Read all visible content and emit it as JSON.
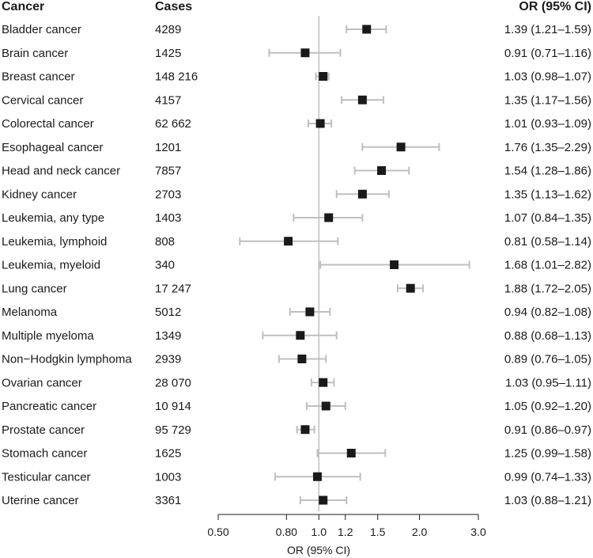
{
  "chart_data": {
    "type": "forest",
    "headers": {
      "cancer": "Cancer",
      "cases": "Cases",
      "or": "OR (95% CI)"
    },
    "xlabel": "OR (95% CI)",
    "xscale": "log",
    "xlim": [
      0.5,
      3.0
    ],
    "reference_value": 1.0,
    "ticks": [
      {
        "value": 0.5,
        "label": "0.50"
      },
      {
        "value": 0.8,
        "label": "0.80"
      },
      {
        "value": 1.0,
        "label": "1.0"
      },
      {
        "value": 1.2,
        "label": "1.2"
      },
      {
        "value": 1.5,
        "label": "1.5"
      },
      {
        "value": 2.0,
        "label": "2.0"
      },
      {
        "value": 3.0,
        "label": "3.0"
      }
    ],
    "rows": [
      {
        "cancer": "Bladder cancer",
        "cases": "4289",
        "or": 1.39,
        "lo": 1.21,
        "hi": 1.59,
        "or_text": "1.39 (1.21–1.59)"
      },
      {
        "cancer": "Brain cancer",
        "cases": "1425",
        "or": 0.91,
        "lo": 0.71,
        "hi": 1.16,
        "or_text": "0.91 (0.71–1.16)"
      },
      {
        "cancer": "Breast cancer",
        "cases": "148 216",
        "or": 1.03,
        "lo": 0.98,
        "hi": 1.07,
        "or_text": "1.03 (0.98–1.07)"
      },
      {
        "cancer": "Cervical cancer",
        "cases": "4157",
        "or": 1.35,
        "lo": 1.17,
        "hi": 1.56,
        "or_text": "1.35 (1.17–1.56)"
      },
      {
        "cancer": "Colorectal cancer",
        "cases": "62 662",
        "or": 1.01,
        "lo": 0.93,
        "hi": 1.09,
        "or_text": "1.01 (0.93–1.09)"
      },
      {
        "cancer": "Esophageal cancer",
        "cases": "1201",
        "or": 1.76,
        "lo": 1.35,
        "hi": 2.29,
        "or_text": "1.76 (1.35–2.29)"
      },
      {
        "cancer": "Head and neck cancer",
        "cases": "7857",
        "or": 1.54,
        "lo": 1.28,
        "hi": 1.86,
        "or_text": "1.54 (1.28–1.86)"
      },
      {
        "cancer": "Kidney cancer",
        "cases": "2703",
        "or": 1.35,
        "lo": 1.13,
        "hi": 1.62,
        "or_text": "1.35 (1.13–1.62)"
      },
      {
        "cancer": "Leukemia, any type",
        "cases": "1403",
        "or": 1.07,
        "lo": 0.84,
        "hi": 1.35,
        "or_text": "1.07 (0.84–1.35)"
      },
      {
        "cancer": "Leukemia, lymphoid",
        "cases": "808",
        "or": 0.81,
        "lo": 0.58,
        "hi": 1.14,
        "or_text": "0.81 (0.58–1.14)"
      },
      {
        "cancer": "Leukemia, myeloid",
        "cases": "340",
        "or": 1.68,
        "lo": 1.01,
        "hi": 2.82,
        "or_text": "1.68 (1.01–2.82)"
      },
      {
        "cancer": "Lung cancer",
        "cases": "17 247",
        "or": 1.88,
        "lo": 1.72,
        "hi": 2.05,
        "or_text": "1.88 (1.72–2.05)"
      },
      {
        "cancer": "Melanoma",
        "cases": "5012",
        "or": 0.94,
        "lo": 0.82,
        "hi": 1.08,
        "or_text": "0.94 (0.82–1.08)"
      },
      {
        "cancer": "Multiple myeloma",
        "cases": "1349",
        "or": 0.88,
        "lo": 0.68,
        "hi": 1.13,
        "or_text": "0.88 (0.68–1.13)"
      },
      {
        "cancer": "Non−Hodgkin lymphoma",
        "cases": "2939",
        "or": 0.89,
        "lo": 0.76,
        "hi": 1.05,
        "or_text": "0.89 (0.76–1.05)"
      },
      {
        "cancer": "Ovarian cancer",
        "cases": "28 070",
        "or": 1.03,
        "lo": 0.95,
        "hi": 1.11,
        "or_text": "1.03 (0.95–1.11)"
      },
      {
        "cancer": "Pancreatic cancer",
        "cases": "10 914",
        "or": 1.05,
        "lo": 0.92,
        "hi": 1.2,
        "or_text": "1.05 (0.92–1.20)"
      },
      {
        "cancer": "Prostate cancer",
        "cases": "95 729",
        "or": 0.91,
        "lo": 0.86,
        "hi": 0.97,
        "or_text": "0.91 (0.86–0.97)"
      },
      {
        "cancer": "Stomach cancer",
        "cases": "1625",
        "or": 1.25,
        "lo": 0.99,
        "hi": 1.58,
        "or_text": "1.25 (0.99–1.58)"
      },
      {
        "cancer": "Testicular cancer",
        "cases": "1003",
        "or": 0.99,
        "lo": 0.74,
        "hi": 1.33,
        "or_text": "0.99 (0.74–1.33)"
      },
      {
        "cancer": "Uterine cancer",
        "cases": "3361",
        "or": 1.03,
        "lo": 0.88,
        "hi": 1.21,
        "or_text": "1.03 (0.88–1.21)"
      }
    ],
    "colors": {
      "point": "#1a1a1a",
      "ci": "#bfbfbf",
      "reference": "#bfbfbf",
      "axis": "#1a1a1a",
      "text": "#1a1a1a"
    }
  }
}
